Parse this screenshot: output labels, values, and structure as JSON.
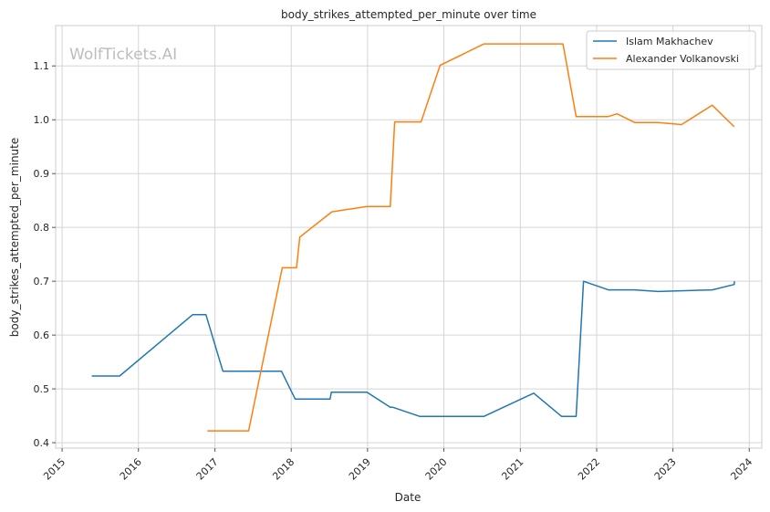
{
  "chart_data": {
    "type": "line",
    "title": "body_strikes_attempted_per_minute over time",
    "xlabel": "Date",
    "ylabel": "body_strikes_attempted_per_minute",
    "watermark": "WolfTickets.AI",
    "grid": true,
    "legend_position": "top-right",
    "xlim": [
      "2014-12-01",
      "2024-03-01"
    ],
    "ylim": [
      0.39,
      1.175
    ],
    "x_ticks": [
      "2015-01-01",
      "2016-01-01",
      "2017-01-01",
      "2018-01-01",
      "2019-01-01",
      "2020-01-01",
      "2021-01-01",
      "2022-01-01",
      "2023-01-01",
      "2024-01-01"
    ],
    "x_tick_labels": [
      "2015",
      "2016",
      "2017",
      "2018",
      "2019",
      "2020",
      "2021",
      "2022",
      "2023",
      "2024"
    ],
    "y_ticks": [
      0.4,
      0.5,
      0.6,
      0.7,
      0.8,
      0.9,
      1.0,
      1.1
    ],
    "y_tick_labels": [
      "0.4",
      "0.5",
      "0.6",
      "0.7",
      "0.8",
      "0.9",
      "1.0",
      "1.1"
    ],
    "series": [
      {
        "name": "Islam Makhachev",
        "color": "#1f77b4",
        "points": [
          [
            "2015-05-23",
            0.524
          ],
          [
            "2015-10-03",
            0.524
          ],
          [
            "2016-09-17",
            0.638
          ],
          [
            "2016-11-19",
            0.638
          ],
          [
            "2017-02-08",
            0.533
          ],
          [
            "2017-11-15",
            0.533
          ],
          [
            "2018-01-20",
            0.481
          ],
          [
            "2018-07-06",
            0.481
          ],
          [
            "2018-07-12",
            0.494
          ],
          [
            "2018-12-29",
            0.494
          ],
          [
            "2019-04-20",
            0.466
          ],
          [
            "2019-05-01",
            0.466
          ],
          [
            "2019-09-07",
            0.449
          ],
          [
            "2020-07-11",
            0.449
          ],
          [
            "2021-03-06",
            0.492
          ],
          [
            "2021-07-17",
            0.449
          ],
          [
            "2021-09-25",
            0.449
          ],
          [
            "2021-10-30",
            0.7
          ],
          [
            "2022-02-26",
            0.684
          ],
          [
            "2022-07-02",
            0.684
          ],
          [
            "2022-10-22",
            0.681
          ],
          [
            "2023-07-08",
            0.684
          ],
          [
            "2023-10-21",
            0.694
          ],
          [
            "2023-10-22",
            0.7
          ]
        ]
      },
      {
        "name": "Alexander Volkanovski",
        "color": "#ff7f0e",
        "points": [
          [
            "2016-11-26",
            0.422
          ],
          [
            "2017-06-11",
            0.422
          ],
          [
            "2017-11-19",
            0.725
          ],
          [
            "2018-01-26",
            0.725
          ],
          [
            "2018-02-11",
            0.782
          ],
          [
            "2018-07-14",
            0.829
          ],
          [
            "2018-12-29",
            0.839
          ],
          [
            "2019-04-20",
            0.839
          ],
          [
            "2019-05-11",
            0.996
          ],
          [
            "2019-09-14",
            0.996
          ],
          [
            "2019-12-14",
            1.101
          ],
          [
            "2020-07-11",
            1.141
          ],
          [
            "2021-07-24",
            1.141
          ],
          [
            "2021-09-25",
            1.006
          ],
          [
            "2022-02-26",
            1.006
          ],
          [
            "2022-04-09",
            1.011
          ],
          [
            "2022-07-02",
            0.995
          ],
          [
            "2022-10-22",
            0.995
          ],
          [
            "2023-02-11",
            0.991
          ],
          [
            "2023-07-08",
            1.027
          ],
          [
            "2023-10-21",
            0.987
          ]
        ]
      }
    ]
  }
}
